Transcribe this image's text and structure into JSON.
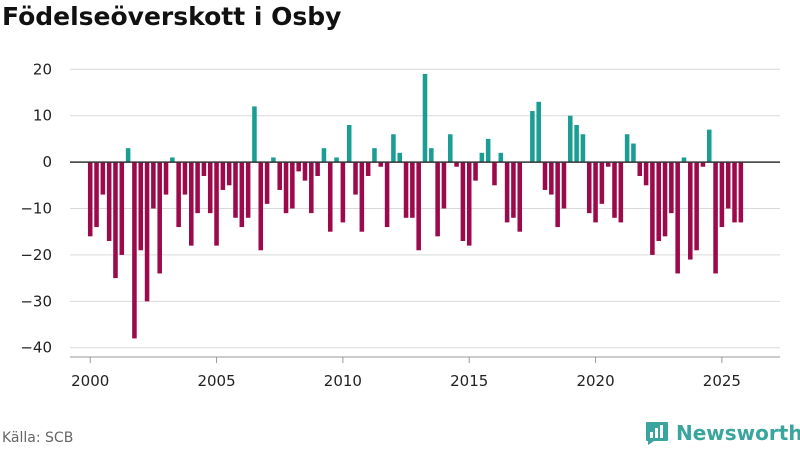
{
  "title": "Födelseöverskott i Osby",
  "source": "Källa: SCB",
  "brand": "Newsworthy",
  "colors": {
    "positive": "#1a9e93",
    "negative": "#9c0a4c",
    "grid": "#d9d9d9",
    "zero": "#333333",
    "brand": "#39a59c"
  },
  "chart_data": {
    "type": "bar",
    "title": "Födelseöverskott i Osby",
    "xlabel": "",
    "ylabel": "",
    "ylim": [
      -42,
      22
    ],
    "xlim": [
      1999.2,
      2027.3
    ],
    "yticks": [
      20,
      10,
      0,
      -10,
      -20,
      -30,
      -40
    ],
    "xticks": [
      2000,
      2005,
      2010,
      2015,
      2020,
      2025
    ],
    "start": 2000,
    "step": 0.25,
    "values": [
      -16,
      -14,
      -7,
      -17,
      -25,
      -20,
      3,
      -38,
      -19,
      -30,
      -10,
      -24,
      -7,
      1,
      -14,
      -7,
      -18,
      -11,
      -3,
      -11,
      -18,
      -6,
      -5,
      -12,
      -14,
      -12,
      12,
      -19,
      -9,
      1,
      -6,
      -11,
      -10,
      -2,
      -4,
      -11,
      -3,
      3,
      -15,
      1,
      -13,
      8,
      -7,
      -15,
      -3,
      3,
      -1,
      -14,
      6,
      2,
      -12,
      -12,
      -19,
      19,
      3,
      -16,
      -10,
      6,
      -1,
      -17,
      -18,
      -4,
      2,
      5,
      -5,
      2,
      -13,
      -12,
      -15,
      0,
      11,
      13,
      -6,
      -7,
      -14,
      -10,
      10,
      8,
      6,
      -11,
      -13,
      -9,
      -1,
      -12,
      -13,
      6,
      4,
      -3,
      -5,
      -20,
      -17,
      -16,
      -11,
      -24,
      1,
      -21,
      -19,
      -1,
      7,
      -24,
      -14,
      -10,
      -13,
      -13
    ]
  }
}
